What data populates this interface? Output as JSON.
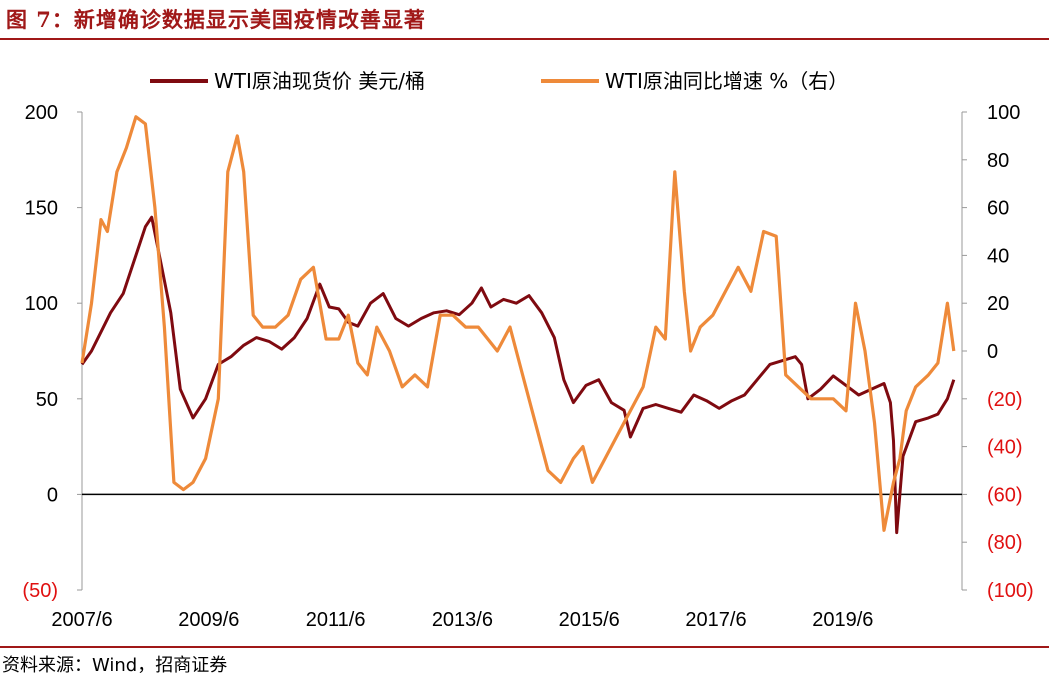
{
  "title": "图 7：新增确诊数据显示美国疫情改善显著",
  "source": "资料来源：Wind，招商证券",
  "chart_data": {
    "type": "line",
    "x_tick_labels": [
      "2007/6",
      "2009/6",
      "2011/6",
      "2013/6",
      "2015/6",
      "2017/6",
      "2019/6"
    ],
    "left_axis": {
      "ylim": [
        -50,
        200
      ],
      "ticks": [
        "200",
        "150",
        "100",
        "50",
        "0",
        "(50)"
      ]
    },
    "right_axis": {
      "ylim": [
        -100,
        100
      ],
      "ticks": [
        "100",
        "80",
        "60",
        "40",
        "20",
        "0",
        "(20)",
        "(40)",
        "(60)",
        "(80)",
        "(100)"
      ]
    },
    "series": [
      {
        "name": "WTI原油现货价 美元/桶",
        "axis": "left",
        "color": "#7f0a10",
        "x": [
          2007.45,
          2007.6,
          2007.75,
          2007.9,
          2008.1,
          2008.3,
          2008.45,
          2008.55,
          2008.7,
          2008.85,
          2009.0,
          2009.2,
          2009.4,
          2009.6,
          2009.8,
          2010.0,
          2010.2,
          2010.4,
          2010.6,
          2010.8,
          2011.0,
          2011.2,
          2011.35,
          2011.5,
          2011.65,
          2011.8,
          2012.0,
          2012.2,
          2012.4,
          2012.6,
          2012.8,
          2013.0,
          2013.2,
          2013.4,
          2013.6,
          2013.75,
          2013.9,
          2014.1,
          2014.3,
          2014.5,
          2014.7,
          2014.9,
          2015.05,
          2015.2,
          2015.4,
          2015.6,
          2015.8,
          2016.0,
          2016.1,
          2016.3,
          2016.5,
          2016.7,
          2016.9,
          2017.1,
          2017.3,
          2017.5,
          2017.7,
          2017.9,
          2018.1,
          2018.3,
          2018.5,
          2018.7,
          2018.8,
          2018.9,
          2019.1,
          2019.3,
          2019.5,
          2019.7,
          2019.9,
          2020.1,
          2020.2,
          2020.25,
          2020.3,
          2020.4,
          2020.6,
          2020.8,
          2020.95,
          2021.1,
          2021.2
        ],
        "values": [
          68,
          75,
          85,
          95,
          105,
          125,
          140,
          145,
          120,
          95,
          55,
          40,
          50,
          68,
          72,
          78,
          82,
          80,
          76,
          82,
          92,
          110,
          98,
          97,
          90,
          88,
          100,
          105,
          92,
          88,
          92,
          95,
          96,
          94,
          100,
          108,
          98,
          102,
          100,
          104,
          95,
          82,
          60,
          48,
          57,
          60,
          48,
          44,
          30,
          45,
          47,
          45,
          43,
          52,
          49,
          45,
          49,
          52,
          60,
          68,
          70,
          72,
          68,
          50,
          55,
          62,
          57,
          52,
          55,
          58,
          48,
          28,
          -20,
          20,
          38,
          40,
          42,
          50,
          60
        ]
      },
      {
        "name": "WTI原油同比增速 %（右）",
        "axis": "right",
        "color": "#ee8a3a",
        "x": [
          2007.45,
          2007.6,
          2007.75,
          2007.85,
          2008.0,
          2008.15,
          2008.3,
          2008.45,
          2008.6,
          2008.75,
          2008.9,
          2009.05,
          2009.2,
          2009.4,
          2009.6,
          2009.75,
          2009.9,
          2010.0,
          2010.15,
          2010.3,
          2010.5,
          2010.7,
          2010.9,
          2011.1,
          2011.3,
          2011.5,
          2011.65,
          2011.8,
          2011.95,
          2012.1,
          2012.3,
          2012.5,
          2012.7,
          2012.9,
          2013.1,
          2013.3,
          2013.5,
          2013.7,
          2013.85,
          2014.0,
          2014.2,
          2014.4,
          2014.6,
          2014.8,
          2015.0,
          2015.2,
          2015.35,
          2015.5,
          2015.7,
          2015.9,
          2016.1,
          2016.3,
          2016.5,
          2016.65,
          2016.8,
          2016.95,
          2017.05,
          2017.2,
          2017.4,
          2017.6,
          2017.8,
          2018.0,
          2018.2,
          2018.4,
          2018.55,
          2018.75,
          2018.95,
          2019.1,
          2019.3,
          2019.5,
          2019.65,
          2019.8,
          2019.95,
          2020.1,
          2020.25,
          2020.35,
          2020.45,
          2020.6,
          2020.8,
          2020.95,
          2021.1,
          2021.2
        ],
        "values": [
          -5,
          20,
          55,
          50,
          75,
          85,
          98,
          95,
          60,
          10,
          -55,
          -58,
          -55,
          -45,
          -20,
          75,
          90,
          75,
          15,
          10,
          10,
          15,
          30,
          35,
          5,
          5,
          15,
          -5,
          -10,
          10,
          0,
          -15,
          -10,
          -15,
          15,
          15,
          10,
          10,
          5,
          0,
          10,
          -10,
          -30,
          -50,
          -55,
          -45,
          -40,
          -55,
          -45,
          -35,
          -25,
          -15,
          10,
          5,
          75,
          25,
          0,
          10,
          15,
          25,
          35,
          25,
          50,
          48,
          -10,
          -15,
          -20,
          -20,
          -20,
          -25,
          20,
          0,
          -30,
          -75,
          -55,
          -45,
          -25,
          -15,
          -10,
          -5,
          20,
          0
        ]
      }
    ]
  }
}
